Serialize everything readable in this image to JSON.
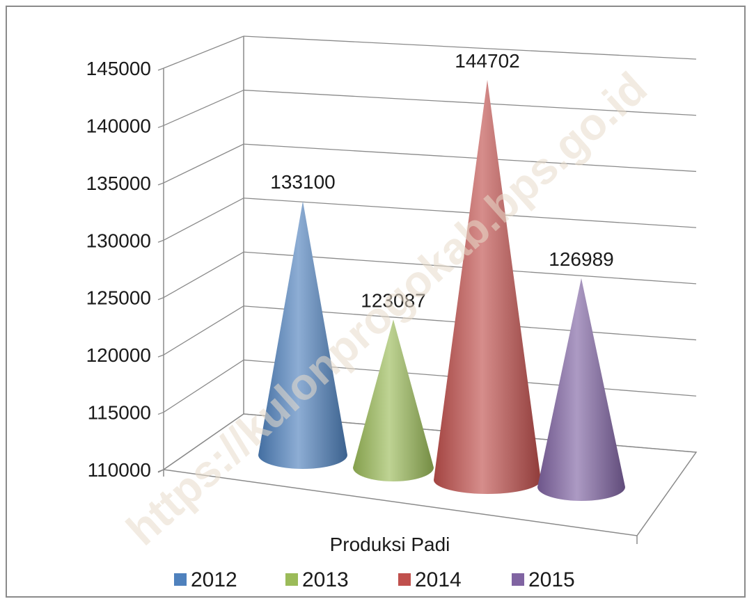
{
  "chart_data": {
    "type": "bar",
    "style": "3d-cone",
    "categories": [
      "Produksi Padi"
    ],
    "series": [
      {
        "name": "2012",
        "values": [
          133100
        ],
        "color": "#4f81bd"
      },
      {
        "name": "2013",
        "values": [
          123087
        ],
        "color": "#9bbb59"
      },
      {
        "name": "2014",
        "values": [
          144702
        ],
        "color": "#c0504d"
      },
      {
        "name": "2015",
        "values": [
          126989
        ],
        "color": "#8064a2"
      }
    ],
    "yticks": [
      "110000",
      "115000",
      "120000",
      "125000",
      "130000",
      "135000",
      "140000",
      "145000"
    ],
    "ylim": [
      110000,
      145000
    ],
    "data_labels": [
      "133100",
      "123087",
      "144702",
      "126989"
    ],
    "grid": true,
    "legend": "bottom",
    "watermark": "https://kulonprogokab.bps.go.id"
  }
}
